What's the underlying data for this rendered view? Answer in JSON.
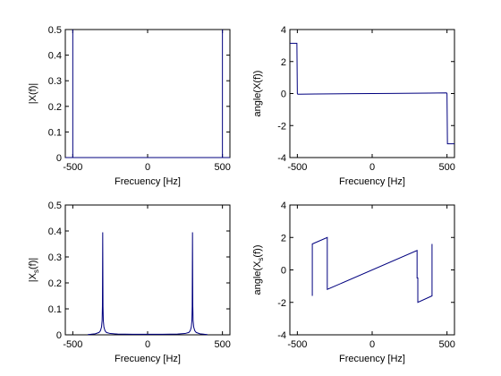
{
  "series_color": "#00007f",
  "chart_data": [
    {
      "type": "line",
      "xlabel": "Frecuency [Hz]",
      "ylabel": "|X(f)|",
      "xlim": [
        -550,
        550
      ],
      "ylim": [
        0,
        0.5
      ],
      "xticks": [
        -500,
        0,
        500
      ],
      "yticks": [
        0,
        0.1,
        0.2,
        0.3,
        0.4,
        0.5
      ],
      "xtick_labels": [
        "-500",
        "0",
        "500"
      ],
      "ytick_labels": [
        "0",
        "0.1",
        "0.2",
        "0.3",
        "0.4",
        "0.5"
      ],
      "grid": false,
      "series": [
        {
          "x": [
            -550,
            -500,
            -500,
            -500,
            500,
            500,
            500,
            550
          ],
          "y": [
            0,
            0,
            0.5,
            0,
            0,
            0.5,
            0,
            0
          ]
        }
      ]
    },
    {
      "type": "line",
      "xlabel": "Frecuency [Hz]",
      "ylabel": "angle(X(f))",
      "xlim": [
        -550,
        550
      ],
      "ylim": [
        -4,
        4
      ],
      "xticks": [
        -500,
        0,
        500
      ],
      "yticks": [
        -4,
        -2,
        0,
        2,
        4
      ],
      "xtick_labels": [
        "-500",
        "0",
        "500"
      ],
      "ytick_labels": [
        "-4",
        "-2",
        "0",
        "2",
        "4"
      ],
      "grid": false,
      "series": [
        {
          "x": [
            -550,
            -503,
            -500,
            -497,
            -380,
            -120,
            0,
            120,
            380,
            497,
            500,
            503,
            550
          ],
          "y": [
            3.14,
            3.14,
            0.0,
            -0.04,
            -0.03,
            -0.01,
            0.0,
            0.01,
            0.03,
            0.04,
            0.0,
            -3.14,
            -3.14
          ]
        }
      ]
    },
    {
      "type": "line",
      "xlabel": "Frecuency [Hz]",
      "ylabel": "|X_s(f)|",
      "xlim": [
        -550,
        550
      ],
      "ylim": [
        0,
        0.5
      ],
      "xticks": [
        -500,
        0,
        500
      ],
      "yticks": [
        0,
        0.1,
        0.2,
        0.3,
        0.4,
        0.5
      ],
      "xtick_labels": [
        "-500",
        "0",
        "500"
      ],
      "ytick_labels": [
        "0",
        "0.1",
        "0.2",
        "0.3",
        "0.4",
        "0.5"
      ],
      "grid": false,
      "series": [
        {
          "x": [
            -400,
            -380,
            -350,
            -325,
            -315,
            -308,
            -304,
            -302,
            -300,
            -298,
            -296,
            -292,
            -285,
            -275,
            -250,
            -200,
            -100,
            0,
            100,
            200,
            250,
            275,
            285,
            292,
            296,
            298,
            300,
            302,
            304,
            308,
            315,
            325,
            350,
            380,
            400
          ],
          "y": [
            0.001,
            0.002,
            0.004,
            0.009,
            0.016,
            0.03,
            0.055,
            0.11,
            0.395,
            0.11,
            0.055,
            0.03,
            0.016,
            0.009,
            0.005,
            0.003,
            0.002,
            0.002,
            0.002,
            0.003,
            0.005,
            0.009,
            0.016,
            0.03,
            0.055,
            0.11,
            0.395,
            0.11,
            0.055,
            0.03,
            0.016,
            0.009,
            0.004,
            0.002,
            0.001
          ]
        }
      ]
    },
    {
      "type": "line",
      "xlabel": "Frecuency [Hz]",
      "ylabel": "angle(X_s(f))",
      "xlim": [
        -550,
        550
      ],
      "ylim": [
        -4,
        4
      ],
      "xticks": [
        -500,
        0,
        500
      ],
      "yticks": [
        -4,
        -2,
        0,
        2,
        4
      ],
      "xtick_labels": [
        "-500",
        "0",
        "500"
      ],
      "ytick_labels": [
        "-4",
        "-2",
        "0",
        "2",
        "4"
      ],
      "grid": false,
      "series": [
        {
          "x": [
            -400,
            -400,
            -300,
            -300,
            300,
            300,
            305,
            305,
            400,
            400
          ],
          "y": [
            -1.6,
            1.6,
            2.0,
            -1.2,
            1.2,
            -0.5,
            -0.5,
            -2.0,
            -1.6,
            1.6
          ]
        }
      ]
    }
  ]
}
